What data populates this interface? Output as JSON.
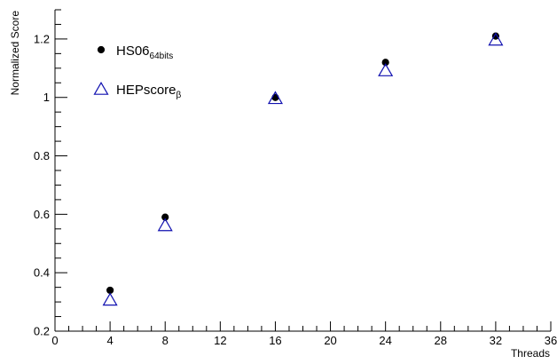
{
  "chart_data": {
    "type": "scatter",
    "xlabel": "Threads",
    "ylabel": "Normalized Score",
    "xlim": [
      0,
      36
    ],
    "ylim": [
      0.2,
      1.3
    ],
    "x_ticks": [
      0,
      4,
      8,
      12,
      16,
      20,
      24,
      28,
      32,
      36
    ],
    "y_ticks": [
      0.2,
      0.4,
      0.6,
      0.8,
      1.0,
      1.2
    ],
    "y_tick_labels": [
      "0.2",
      "0.4",
      "0.6",
      "0.8",
      "1",
      "1.2"
    ],
    "grid": false,
    "legend_position": "top-left",
    "series": [
      {
        "name": "HS06",
        "name_subscript": "64bits",
        "marker": "filled-circle",
        "color": "#000000",
        "x": [
          4,
          8,
          16,
          24,
          32
        ],
        "y": [
          0.34,
          0.59,
          1.0,
          1.12,
          1.21
        ]
      },
      {
        "name": "HEPscore",
        "name_subscript": "β",
        "marker": "open-triangle",
        "color": "#1010b0",
        "x": [
          4,
          8,
          16,
          24,
          32
        ],
        "y": [
          0.305,
          0.56,
          0.995,
          1.09,
          1.195
        ]
      }
    ]
  }
}
